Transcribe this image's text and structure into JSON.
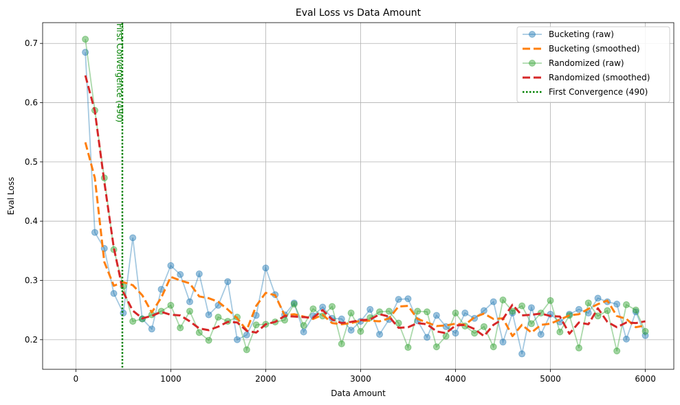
{
  "chart_data": {
    "type": "line",
    "title": "Eval Loss vs Data Amount",
    "xlabel": "Data Amount",
    "ylabel": "Eval Loss",
    "xlim": [
      -350,
      6300
    ],
    "ylim": [
      0.15,
      0.735
    ],
    "x_ticks": [
      0,
      1000,
      2000,
      3000,
      4000,
      5000,
      6000
    ],
    "y_ticks": [
      0.2,
      0.3,
      0.4,
      0.5,
      0.6,
      0.7
    ],
    "grid": true,
    "legend_position": "top-right",
    "x": [
      100,
      200,
      300,
      400,
      500,
      600,
      700,
      800,
      900,
      1000,
      1100,
      1200,
      1300,
      1400,
      1500,
      1600,
      1700,
      1800,
      1900,
      2000,
      2100,
      2200,
      2300,
      2400,
      2500,
      2600,
      2700,
      2800,
      2900,
      3000,
      3100,
      3200,
      3300,
      3400,
      3500,
      3600,
      3700,
      3800,
      3900,
      4000,
      4100,
      4200,
      4300,
      4400,
      4500,
      4600,
      4700,
      4800,
      4900,
      5000,
      5100,
      5200,
      5300,
      5400,
      5500,
      5600,
      5700,
      5800,
      5900,
      6000
    ],
    "series": [
      {
        "name": "Bucketing (raw)",
        "color": "#1f77b4",
        "style": "raw",
        "values": [
          0.685,
          0.381,
          0.354,
          0.278,
          0.245,
          0.372,
          0.235,
          0.218,
          0.285,
          0.325,
          0.31,
          0.264,
          0.311,
          0.242,
          0.258,
          0.298,
          0.2,
          0.208,
          0.241,
          0.321,
          0.276,
          0.242,
          0.262,
          0.213,
          0.24,
          0.255,
          0.236,
          0.235,
          0.216,
          0.231,
          0.251,
          0.209,
          0.234,
          0.268,
          0.269,
          0.232,
          0.204,
          0.241,
          0.222,
          0.211,
          0.245,
          0.236,
          0.249,
          0.264,
          0.196,
          0.245,
          0.176,
          0.254,
          0.209,
          0.243,
          0.23,
          0.243,
          0.251,
          0.245,
          0.27,
          0.264,
          0.26,
          0.201,
          0.247,
          0.207
        ]
      },
      {
        "name": "Bucketing (smoothed)",
        "color": "#ff7f0e",
        "style": "dashed",
        "values": [
          0.533,
          0.473,
          0.331,
          0.291,
          0.297,
          0.292,
          0.275,
          0.246,
          0.271,
          0.306,
          0.3,
          0.295,
          0.273,
          0.27,
          0.264,
          0.251,
          0.236,
          0.216,
          0.257,
          0.279,
          0.275,
          0.241,
          0.243,
          0.239,
          0.235,
          0.242,
          0.228,
          0.226,
          0.228,
          0.232,
          0.232,
          0.231,
          0.236,
          0.256,
          0.257,
          0.235,
          0.229,
          0.223,
          0.224,
          0.227,
          0.225,
          0.238,
          0.244,
          0.235,
          0.236,
          0.206,
          0.225,
          0.212,
          0.225,
          0.227,
          0.234,
          0.241,
          0.243,
          0.252,
          0.26,
          0.266,
          0.24,
          0.235,
          0.221,
          0.224
        ]
      },
      {
        "name": "Randomized (raw)",
        "color": "#2ca02c",
        "style": "raw",
        "values": [
          0.707,
          0.587,
          0.473,
          0.352,
          0.29,
          0.231,
          0.235,
          0.242,
          0.248,
          0.258,
          0.22,
          0.248,
          0.212,
          0.199,
          0.238,
          0.231,
          0.238,
          0.183,
          0.225,
          0.226,
          0.23,
          0.233,
          0.26,
          0.224,
          0.252,
          0.24,
          0.256,
          0.193,
          0.245,
          0.214,
          0.237,
          0.247,
          0.248,
          0.228,
          0.187,
          0.248,
          0.247,
          0.188,
          0.206,
          0.245,
          0.223,
          0.211,
          0.222,
          0.188,
          0.267,
          0.248,
          0.257,
          0.227,
          0.245,
          0.266,
          0.213,
          0.241,
          0.186,
          0.262,
          0.24,
          0.249,
          0.181,
          0.259,
          0.25,
          0.214
        ]
      },
      {
        "name": "Randomized (smoothed)",
        "color": "#d62728",
        "style": "dashed",
        "values": [
          0.646,
          0.586,
          0.466,
          0.355,
          0.28,
          0.249,
          0.236,
          0.24,
          0.247,
          0.242,
          0.241,
          0.231,
          0.219,
          0.216,
          0.222,
          0.23,
          0.229,
          0.215,
          0.212,
          0.226,
          0.23,
          0.24,
          0.239,
          0.238,
          0.237,
          0.25,
          0.234,
          0.228,
          0.23,
          0.233,
          0.234,
          0.243,
          0.239,
          0.22,
          0.221,
          0.228,
          0.226,
          0.214,
          0.211,
          0.224,
          0.225,
          0.218,
          0.206,
          0.225,
          0.235,
          0.259,
          0.241,
          0.242,
          0.244,
          0.24,
          0.239,
          0.21,
          0.229,
          0.226,
          0.253,
          0.23,
          0.221,
          0.229,
          0.228,
          0.231
        ]
      }
    ],
    "vline": {
      "x": 490,
      "label": "First Convergence (490)",
      "legend_label": "First Convergence (490)",
      "color": "#008000"
    }
  }
}
